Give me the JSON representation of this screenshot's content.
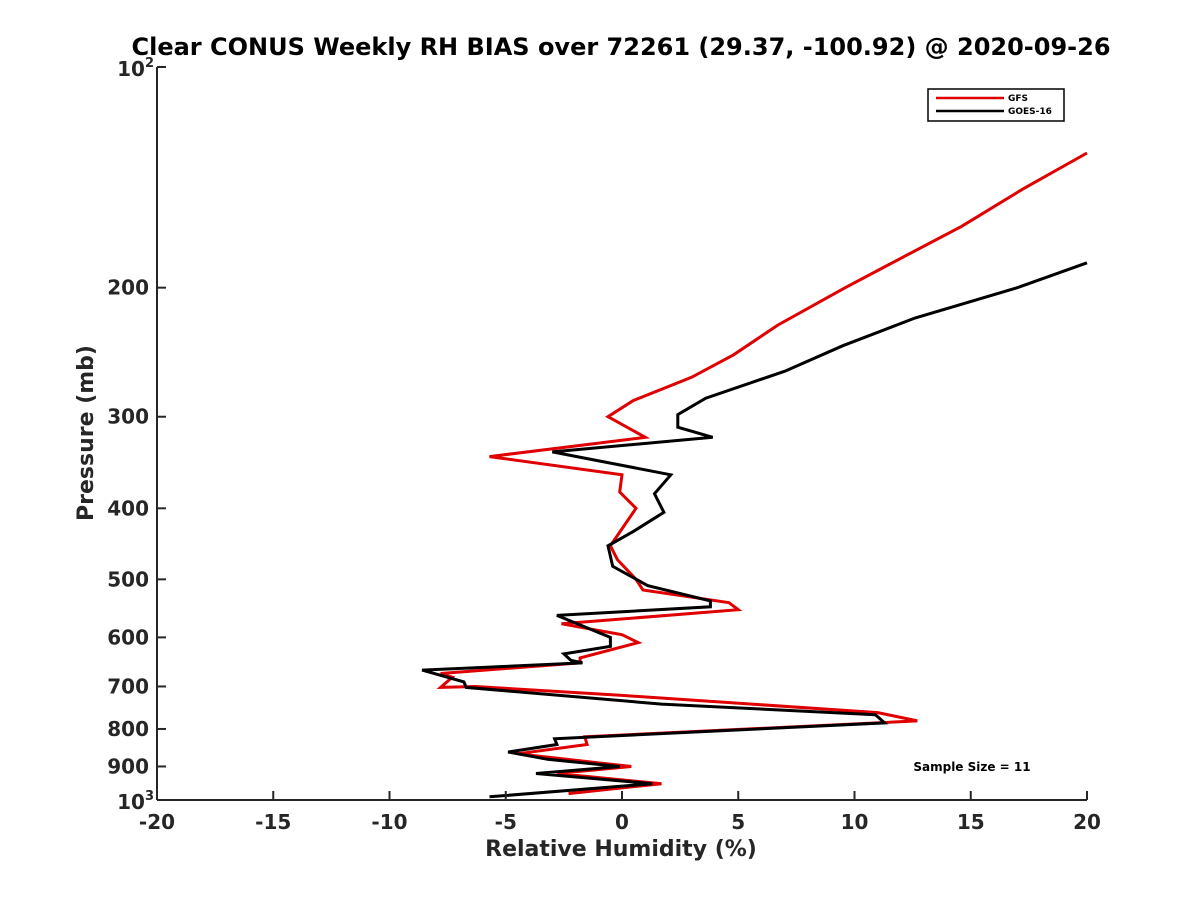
{
  "chart_data": {
    "type": "line",
    "title": "Clear CONUS Weekly RH BIAS over 72261 (29.37, -100.92) @ 2020-09-26",
    "xlabel": "Relative Humidity (%)",
    "ylabel": "Pressure (mb)",
    "xlim": [
      -20,
      20
    ],
    "ylim": [
      100,
      1000
    ],
    "yscale": "log",
    "y_reversed": true,
    "x_ticks": [
      "-20",
      "-15",
      "-10",
      "-5",
      "0",
      "5",
      "10",
      "15",
      "20"
    ],
    "y_ticks": [
      {
        "value": 100,
        "base": "10",
        "sup": "2"
      },
      {
        "value": 200,
        "base": "200",
        "sup": ""
      },
      {
        "value": 300,
        "base": "300",
        "sup": ""
      },
      {
        "value": 400,
        "base": "400",
        "sup": ""
      },
      {
        "value": 500,
        "base": "500",
        "sup": ""
      },
      {
        "value": 600,
        "base": "600",
        "sup": ""
      },
      {
        "value": 700,
        "base": "700",
        "sup": ""
      },
      {
        "value": 800,
        "base": "800",
        "sup": ""
      },
      {
        "value": 900,
        "base": "900",
        "sup": ""
      },
      {
        "value": 1000,
        "base": "10",
        "sup": "3"
      }
    ],
    "legend_position": "top-right",
    "grid": false,
    "annotation": "Sample Size = 11",
    "series": [
      {
        "name": "GFS",
        "color": "#e00000",
        "points": [
          [
            -2.3,
            980
          ],
          [
            1.7,
            950
          ],
          [
            -2.8,
            920
          ],
          [
            0.4,
            900
          ],
          [
            -4.5,
            865
          ],
          [
            -1.5,
            840
          ],
          [
            -1.6,
            820
          ],
          [
            12.7,
            780
          ],
          [
            11.0,
            760
          ],
          [
            0.0,
            720
          ],
          [
            -6.3,
            700
          ],
          [
            -7.8,
            702
          ],
          [
            -7.3,
            680
          ],
          [
            -7.8,
            672
          ],
          [
            -1.8,
            650
          ],
          [
            -1.8,
            640
          ],
          [
            0.7,
            610
          ],
          [
            0.0,
            595
          ],
          [
            -2.6,
            575
          ],
          [
            5.0,
            550
          ],
          [
            4.6,
            538
          ],
          [
            0.9,
            517
          ],
          [
            0.6,
            500
          ],
          [
            -0.2,
            470
          ],
          [
            -0.5,
            450
          ],
          [
            0.6,
            400
          ],
          [
            -0.1,
            380
          ],
          [
            0.0,
            360
          ],
          [
            -5.7,
            340
          ],
          [
            1.0,
            320
          ],
          [
            -0.6,
            300
          ],
          [
            0.5,
            285
          ],
          [
            3.0,
            265
          ],
          [
            4.8,
            247
          ],
          [
            6.7,
            225
          ],
          [
            9.6,
            200
          ],
          [
            11.9,
            183
          ],
          [
            14.6,
            165
          ],
          [
            17.2,
            147
          ],
          [
            20.0,
            131
          ]
        ]
      },
      {
        "name": "GOES-16",
        "color": "#000000",
        "points": [
          [
            -5.7,
            990
          ],
          [
            1.3,
            950
          ],
          [
            -3.7,
            920
          ],
          [
            -0.1,
            900
          ],
          [
            -3.2,
            880
          ],
          [
            -4.9,
            860
          ],
          [
            -2.8,
            840
          ],
          [
            -2.9,
            825
          ],
          [
            11.3,
            785
          ],
          [
            10.9,
            765
          ],
          [
            1.7,
            740
          ],
          [
            -6.7,
            702
          ],
          [
            -6.8,
            690
          ],
          [
            -8.6,
            665
          ],
          [
            -1.7,
            650
          ],
          [
            -2.2,
            645
          ],
          [
            -2.5,
            632
          ],
          [
            -0.5,
            617
          ],
          [
            -0.5,
            600
          ],
          [
            -2.8,
            560
          ],
          [
            3.8,
            545
          ],
          [
            3.8,
            535
          ],
          [
            1.1,
            510
          ],
          [
            -0.4,
            480
          ],
          [
            -0.6,
            450
          ],
          [
            0.5,
            430
          ],
          [
            1.8,
            405
          ],
          [
            1.5,
            388
          ],
          [
            1.4,
            382
          ],
          [
            2.1,
            360
          ],
          [
            -3.0,
            335
          ],
          [
            3.9,
            320
          ],
          [
            2.4,
            310
          ],
          [
            2.4,
            298
          ],
          [
            3.6,
            283
          ],
          [
            7.0,
            260
          ],
          [
            9.5,
            240
          ],
          [
            12.6,
            220
          ],
          [
            17.0,
            200
          ],
          [
            20.0,
            185
          ]
        ]
      }
    ]
  }
}
